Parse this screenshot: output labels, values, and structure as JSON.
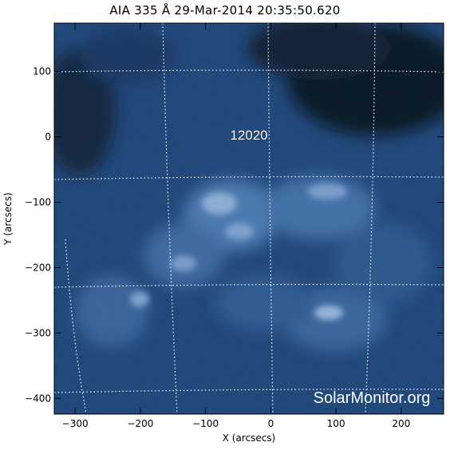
{
  "title": "AIA 335 Å 29-Mar-2014 20:35:50.620",
  "x_axis": {
    "label": "X (arcsecs)",
    "ticks": [
      {
        "value": -300,
        "label": "−300"
      },
      {
        "value": -200,
        "label": "−200"
      },
      {
        "value": -100,
        "label": "−100"
      },
      {
        "value": 0,
        "label": "0"
      },
      {
        "value": 100,
        "label": "100"
      },
      {
        "value": 200,
        "label": "200"
      }
    ],
    "range": [
      -332,
      265
    ]
  },
  "y_axis": {
    "label": "Y (arcsecs)",
    "ticks": [
      {
        "value": 100,
        "label": "100"
      },
      {
        "value": 0,
        "label": "0"
      },
      {
        "value": -100,
        "label": "−100"
      },
      {
        "value": -200,
        "label": "−200"
      },
      {
        "value": -300,
        "label": "−300"
      },
      {
        "value": -400,
        "label": "−400"
      }
    ],
    "range": [
      -424,
      174
    ]
  },
  "region": {
    "label": "12020",
    "x": -35,
    "y": 5
  },
  "watermark": "SolarMonitor.org",
  "colors": {
    "background": "#ffffff",
    "image_dark": "#06111f",
    "image_mid": "#1f4d86",
    "image_light": "#a9c6e8",
    "grid": "#ffffff"
  }
}
